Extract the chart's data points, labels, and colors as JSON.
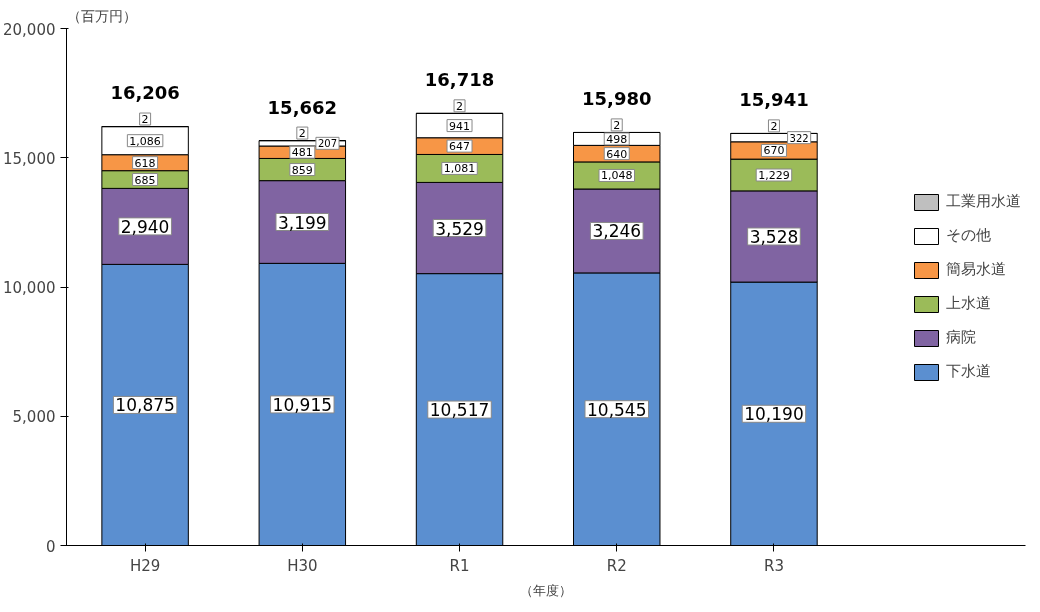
{
  "chart_data": {
    "type": "bar",
    "stacked": true,
    "ylabel": "（百万円）",
    "xlabel": "（年度）",
    "categories": [
      "H29",
      "H30",
      "R1",
      "R2",
      "R3"
    ],
    "series": [
      {
        "name": "下水道",
        "color": "#5b8fd0",
        "values": [
          10875,
          10915,
          10517,
          10545,
          10190
        ],
        "value_labels": [
          "10,875",
          "10,915",
          "10,517",
          "10,545",
          "10,190"
        ]
      },
      {
        "name": "病院",
        "color": "#8064a2",
        "values": [
          2940,
          3199,
          3529,
          3246,
          3528
        ],
        "value_labels": [
          "2,940",
          "3,199",
          "3,529",
          "3,246",
          "3,528"
        ]
      },
      {
        "name": "上水道",
        "color": "#9bbb59",
        "values": [
          685,
          859,
          1081,
          1048,
          1229
        ],
        "value_labels": [
          "685",
          "859",
          "1,081",
          "1,048",
          "1,229"
        ]
      },
      {
        "name": "簡易水道",
        "color": "#f79646",
        "values": [
          618,
          481,
          647,
          640,
          670
        ],
        "value_labels": [
          "618",
          "481",
          "647",
          "640",
          "670"
        ]
      },
      {
        "name": "その他",
        "color": "#ffffff",
        "values": [
          1086,
          207,
          941,
          498,
          322
        ],
        "value_labels": [
          "1,086",
          "207",
          "941",
          "498",
          "322"
        ]
      },
      {
        "name": "工業用水道",
        "color": "#bfbfbf",
        "values": [
          2,
          2,
          2,
          2,
          2
        ],
        "value_labels": [
          "2",
          "2",
          "2",
          "2",
          "2"
        ]
      }
    ],
    "totals": [
      "16,206",
      "15,662",
      "16,718",
      "15,980",
      "15,941"
    ],
    "ylim": [
      0,
      20000
    ],
    "yticks": [
      0,
      {
        "value": 5000,
        "label": "5,000"
      },
      {
        "value": 10000,
        "label": "10,000"
      },
      {
        "value": 15000,
        "label": "15,000"
      },
      {
        "value": 20000,
        "label": "20,000"
      }
    ],
    "grid": false,
    "legend": "right"
  }
}
